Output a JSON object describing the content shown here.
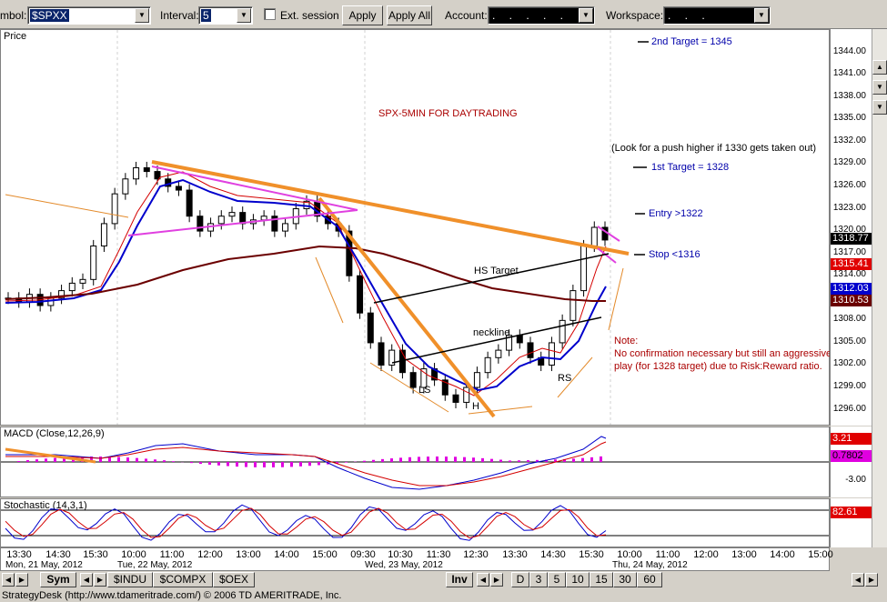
{
  "toolbar": {
    "symbol_label": "mbol:",
    "symbol_value": "$SPXX",
    "interval_label": "Interval:",
    "interval_value": "5",
    "ext_session_label": "Ext. session",
    "apply_label": "Apply",
    "apply_all_label": "Apply All",
    "account_label": "Account:",
    "account_value": ". . . . .",
    "workspace_label": "Workspace:",
    "workspace_value": ". . ."
  },
  "price_pane": {
    "title": "Price",
    "y_ticks": [
      "1344.00",
      "1341.00",
      "1338.00",
      "1335.00",
      "1332.00",
      "1329.00",
      "1326.00",
      "1323.00",
      "1320.00",
      "1317.00",
      "1314.00",
      "1311.00",
      "1308.00",
      "1305.00",
      "1302.00",
      "1299.00",
      "1296.00"
    ],
    "badges": [
      {
        "text": "1318.77",
        "bg": "#000000",
        "fg": "#ffffff",
        "value": 1318.77
      },
      {
        "text": "1315.41",
        "bg": "#e00000",
        "fg": "#ffffff",
        "value": 1315.41
      },
      {
        "text": "1312.03",
        "bg": "#0000cc",
        "fg": "#ffffff",
        "value": 1312.03
      },
      {
        "text": "1310.53",
        "bg": "#6b0000",
        "fg": "#ffffff",
        "value": 1310.53
      }
    ],
    "annotations": {
      "chart_title": "SPX-5MIN FOR DAYTRADING",
      "second_target": "2nd Target = 1345",
      "push_note": "(Look for a push higher if 1330 gets taken out)",
      "first_target": "1st Target = 1328",
      "entry": "Entry >1322",
      "stop": "Stop <1316",
      "hs_target": "HS Target",
      "neckline": "neckline",
      "ls": "LS",
      "h": "H",
      "rs": "RS",
      "note_title": "Note:",
      "note_line1": "No confirmation necessary but still an aggressive",
      "note_line2": "play (for 1328 target) due to Risk:Reward ratio."
    }
  },
  "macd_pane": {
    "title": "MACD (Close,12,26,9)",
    "y_ticks": [
      "-3.00"
    ],
    "badges": [
      {
        "text": "3.21",
        "bg": "#e00000",
        "fg": "#ffffff"
      },
      {
        "text": "0.7802",
        "bg": "#e000e0",
        "fg": "#000000"
      }
    ]
  },
  "stoch_pane": {
    "title": "Stochastic (14,3,1)",
    "badges": [
      {
        "text": "82.61",
        "bg": "#e00000",
        "fg": "#ffffff"
      }
    ]
  },
  "x_axis": {
    "times": [
      "13:30",
      "14:30",
      "15:30",
      "10:00",
      "11:00",
      "12:00",
      "13:00",
      "14:00",
      "15:00",
      "09:30",
      "10:30",
      "11:30",
      "12:30",
      "13:30",
      "14:30",
      "15:30",
      "10:00",
      "11:00",
      "12:00",
      "13:00",
      "14:00",
      "15:00"
    ],
    "dates": [
      "Mon, 21 May, 2012",
      "Tue, 22 May, 2012",
      "Wed, 23 May, 2012",
      "Thu, 24 May, 2012"
    ]
  },
  "tabs": {
    "sym_label": "Sym",
    "symbols": [
      "$INDU",
      "$COMPX",
      "$OEX"
    ],
    "inv_label": "Inv",
    "periods": [
      "D",
      "3",
      "5",
      "10",
      "15",
      "30",
      "60"
    ]
  },
  "status_text": "StrategyDesk (http://www.tdameritrade.com/) © 2006 TD AMERITRADE, Inc.",
  "chart_data": {
    "type": "candlestick",
    "symbol": "$SPXX",
    "ylim": [
      1294,
      1347
    ],
    "closes": [
      1311,
      1310.5,
      1311.5,
      1310,
      1311,
      1312,
      1313,
      1313.5,
      1318,
      1321,
      1325,
      1327,
      1328.5,
      1328,
      1327,
      1326,
      1325.5,
      1322,
      1320,
      1321,
      1322,
      1322.5,
      1321,
      1321.5,
      1322,
      1320,
      1321,
      1323,
      1324,
      1322,
      1321,
      1320,
      1314,
      1309,
      1305,
      1302,
      1304,
      1301,
      1299,
      1301.5,
      1300,
      1298,
      1297,
      1299,
      1301,
      1303,
      1304,
      1306,
      1305,
      1303,
      1302,
      1305,
      1308,
      1312,
      1318,
      1320.5,
      1318.8
    ],
    "levels": {
      "second_target": 1345,
      "first_target": 1328,
      "entry": 1322,
      "stop": 1316,
      "push_level": 1330
    }
  }
}
